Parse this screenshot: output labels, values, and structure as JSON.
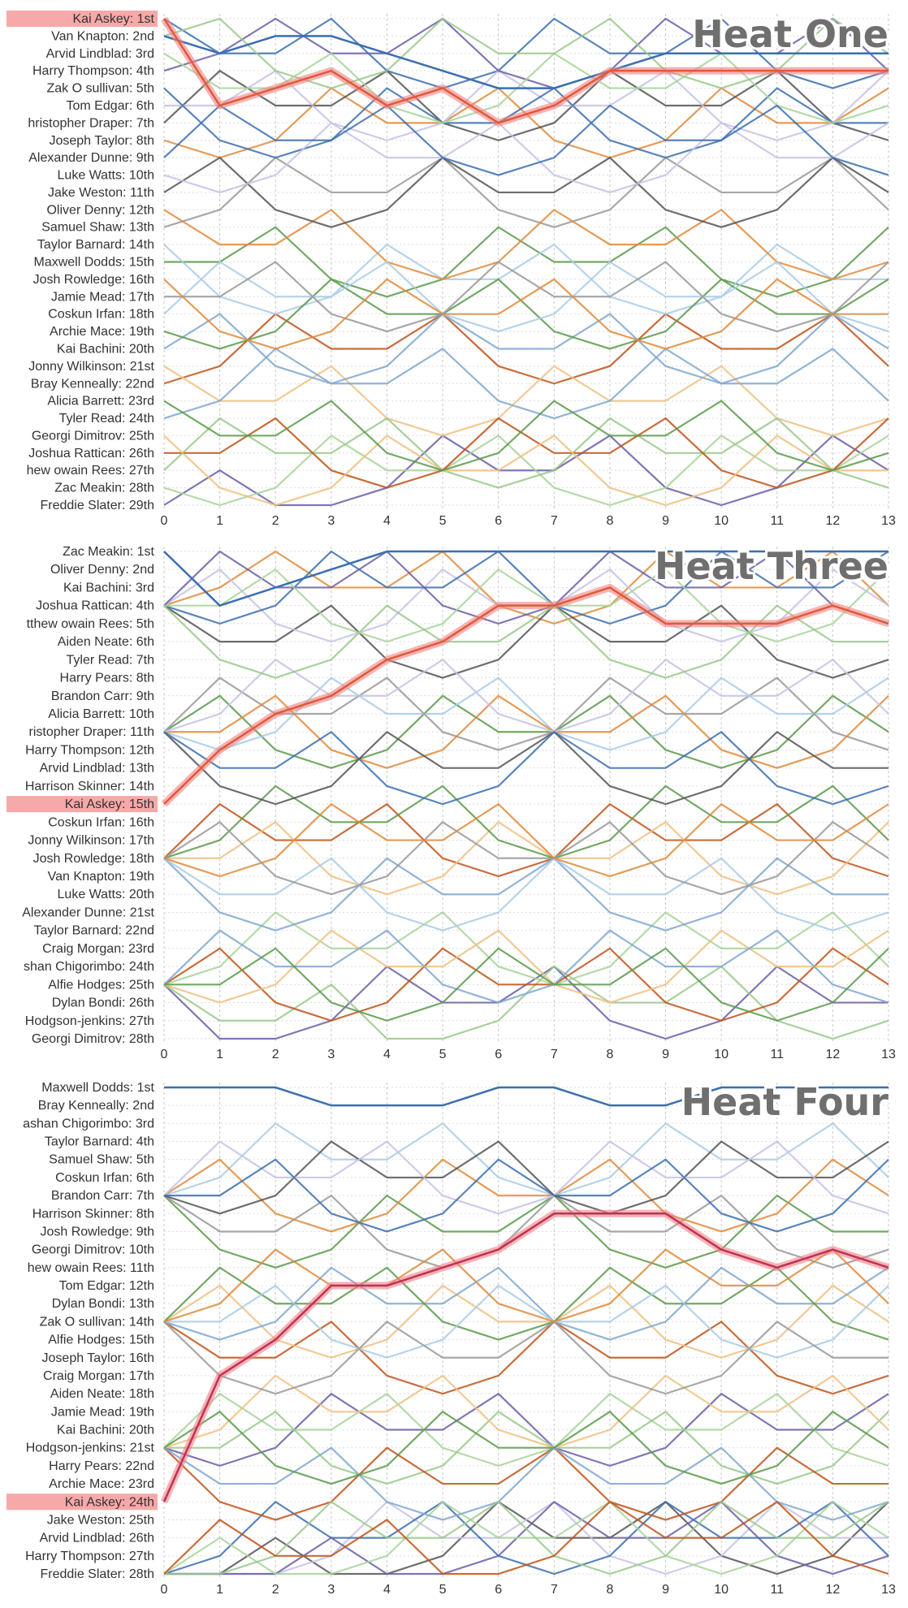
{
  "colors": {
    "highlight": "#f08080",
    "highlight_label_bg": "#f7a8a8",
    "grid": "#c8c8c8",
    "axis_text": "#333333",
    "title": "#6f6f6f",
    "palette": [
      "#3b6fb0",
      "#e0893a",
      "#5a9a4a",
      "#c0541a",
      "#6a5fa8",
      "#555555",
      "#a9cbe8",
      "#f0c080",
      "#a8d49a",
      "#c6c2e6",
      "#999999",
      "#7fa7d0",
      "#9ac88a"
    ]
  },
  "chart_data": [
    {
      "type": "line",
      "title": "Heat One",
      "x": [
        0,
        1,
        2,
        3,
        4,
        5,
        6,
        7,
        8,
        9,
        10,
        11,
        12,
        13
      ],
      "xlim": [
        0,
        13
      ],
      "grid": true,
      "highlight": "Kai Askey",
      "labels": [
        "Kai Askey: 1st",
        "Van Knapton: 2nd",
        "Arvid Lindblad: 3rd",
        "Harry Thompson: 4th",
        "Zak O sullivan: 5th",
        "Tom Edgar: 6th",
        "hristopher Draper: 7th",
        "Joseph Taylor: 8th",
        "Alexander Dunne: 9th",
        "Luke Watts: 10th",
        "Jake Weston: 11th",
        "Oliver Denny: 12th",
        "Samuel Shaw: 13th",
        "Taylor Barnard: 14th",
        "Maxwell Dodds: 15th",
        "Josh Rowledge: 16th",
        "Jamie Mead: 17th",
        "Coskun Irfan: 18th",
        "Archie Mace: 19th",
        "Kai Bachini: 20th",
        "Jonny Wilkinson: 21st",
        "Bray Kenneally: 22nd",
        "Alicia Barrett: 23rd",
        "Tyler Read: 24th",
        "Georgi Dimitrov: 25th",
        "Joshua Rattican: 26th",
        "hew owain Rees: 27th",
        "Zac Meakin: 28th",
        "Freddie Slater: 29th"
      ],
      "series": [
        {
          "values": [
            1,
            6,
            5,
            4,
            6,
            5,
            7,
            6,
            4,
            4,
            4,
            4,
            4,
            4
          ]
        },
        {
          "values": [
            2,
            3,
            2,
            2,
            3,
            4,
            5,
            5,
            4,
            3,
            3,
            3,
            3,
            3
          ]
        }
      ]
    },
    {
      "type": "line",
      "title": "Heat Three",
      "x": [
        0,
        1,
        2,
        3,
        4,
        5,
        6,
        7,
        8,
        9,
        10,
        11,
        12,
        13
      ],
      "xlim": [
        0,
        13
      ],
      "grid": true,
      "highlight": "Kai Askey",
      "labels": [
        "Zac Meakin: 1st",
        "Oliver Denny: 2nd",
        "Kai Bachini: 3rd",
        "Joshua Rattican: 4th",
        "tthew owain Rees: 5th",
        "Aiden Neate: 6th",
        "Tyler Read: 7th",
        "Harry Pears: 8th",
        "Brandon Carr: 9th",
        "Alicia Barrett: 10th",
        "ristopher Draper: 11th",
        "Harry Thompson: 12th",
        "Arvid Lindblad: 13th",
        "Harrison Skinner: 14th",
        "Kai Askey: 15th",
        "Coskun Irfan: 16th",
        "Jonny Wilkinson: 17th",
        "Josh Rowledge: 18th",
        "Van Knapton: 19th",
        "Luke Watts: 20th",
        "Alexander Dunne: 21st",
        "Taylor Barnard: 22nd",
        "Craig Morgan: 23rd",
        "shan Chigorimbo: 24th",
        "Alfie Hodges: 25th",
        "Dylan Bondi: 26th",
        "Hodgson-jenkins: 27th",
        "Georgi Dimitrov: 28th"
      ],
      "series": [
        {
          "values": [
            15,
            12,
            10,
            9,
            7,
            6,
            4,
            4,
            3,
            5,
            5,
            5,
            4,
            5
          ]
        },
        {
          "values": [
            1,
            4,
            3,
            2,
            1,
            1,
            1,
            1,
            1,
            1,
            1,
            1,
            1,
            1
          ]
        }
      ]
    },
    {
      "type": "line",
      "title": "Heat Four",
      "x": [
        0,
        1,
        2,
        3,
        4,
        5,
        6,
        7,
        8,
        9,
        10,
        11,
        12,
        13
      ],
      "xlim": [
        0,
        13
      ],
      "grid": true,
      "highlight": "Kai Askey",
      "labels": [
        "Maxwell Dodds: 1st",
        "Bray Kenneally: 2nd",
        "ashan Chigorimbo: 3rd",
        "Taylor Barnard: 4th",
        "Samuel Shaw: 5th",
        "Coskun Irfan: 6th",
        "Brandon Carr: 7th",
        "Harrison Skinner: 8th",
        "Josh Rowledge: 9th",
        "Georgi Dimitrov: 10th",
        "hew owain Rees: 11th",
        "Tom Edgar: 12th",
        "Dylan Bondi: 13th",
        "Zak O sullivan: 14th",
        "Alfie Hodges: 15th",
        "Joseph Taylor: 16th",
        "Craig Morgan: 17th",
        "Aiden Neate: 18th",
        "Jamie Mead: 19th",
        "Kai Bachini: 20th",
        "Hodgson-jenkins: 21st",
        "Harry Pears: 22nd",
        "Archie Mace: 23rd",
        "Kai Askey: 24th",
        "Jake Weston: 25th",
        "Arvid Lindblad: 26th",
        "Harry Thompson: 27th",
        "Freddie Slater: 28th"
      ],
      "series": [
        {
          "values": [
            24,
            17,
            15,
            12,
            12,
            11,
            10,
            8,
            8,
            8,
            10,
            11,
            10,
            11
          ]
        },
        {
          "values": [
            1,
            1,
            1,
            2,
            2,
            2,
            1,
            1,
            2,
            2,
            1,
            1,
            1,
            1
          ]
        }
      ]
    }
  ]
}
